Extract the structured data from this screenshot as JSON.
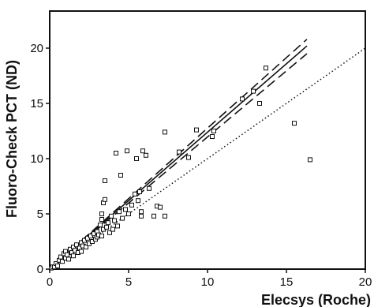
{
  "chart_data": {
    "type": "scatter",
    "title": "",
    "xlabel": "Elecsys (Roche)",
    "ylabel": "Fluoro-Check PCT (ND)",
    "xlim": [
      0,
      20
    ],
    "ylim": [
      0,
      20
    ],
    "x_ticks": [
      "0",
      "5",
      "10",
      "15",
      "20"
    ],
    "y_ticks": [
      "0",
      "5",
      "10",
      "15",
      "20"
    ],
    "grid": false,
    "legend": "none",
    "colors": {
      "axis": "#111111",
      "points": "#111111",
      "lines": "#111111"
    },
    "points": [
      {
        "x": 0.1,
        "y": 0.1
      },
      {
        "x": 0.2,
        "y": 0.2
      },
      {
        "x": 0.3,
        "y": 0.2
      },
      {
        "x": 0.4,
        "y": 0.5
      },
      {
        "x": 0.5,
        "y": 0.3
      },
      {
        "x": 0.6,
        "y": 0.8
      },
      {
        "x": 0.7,
        "y": 1.1
      },
      {
        "x": 0.8,
        "y": 0.7
      },
      {
        "x": 0.9,
        "y": 1.4
      },
      {
        "x": 1.0,
        "y": 1.0
      },
      {
        "x": 1.0,
        "y": 1.6
      },
      {
        "x": 1.1,
        "y": 1.3
      },
      {
        "x": 1.2,
        "y": 0.9
      },
      {
        "x": 1.3,
        "y": 1.8
      },
      {
        "x": 1.4,
        "y": 1.5
      },
      {
        "x": 1.5,
        "y": 1.2
      },
      {
        "x": 1.5,
        "y": 2.0
      },
      {
        "x": 1.6,
        "y": 1.7
      },
      {
        "x": 1.7,
        "y": 2.2
      },
      {
        "x": 1.8,
        "y": 1.5
      },
      {
        "x": 1.9,
        "y": 1.9
      },
      {
        "x": 2.0,
        "y": 2.4
      },
      {
        "x": 2.0,
        "y": 1.6
      },
      {
        "x": 2.1,
        "y": 2.1
      },
      {
        "x": 2.2,
        "y": 2.6
      },
      {
        "x": 2.3,
        "y": 2.0
      },
      {
        "x": 2.4,
        "y": 2.8
      },
      {
        "x": 2.5,
        "y": 2.3
      },
      {
        "x": 2.6,
        "y": 3.0
      },
      {
        "x": 2.7,
        "y": 2.5
      },
      {
        "x": 2.8,
        "y": 3.2
      },
      {
        "x": 2.9,
        "y": 2.7
      },
      {
        "x": 3.0,
        "y": 3.4
      },
      {
        "x": 3.0,
        "y": 2.9
      },
      {
        "x": 3.1,
        "y": 3.1
      },
      {
        "x": 3.2,
        "y": 4.0
      },
      {
        "x": 3.3,
        "y": 3.0
      },
      {
        "x": 3.3,
        "y": 4.5
      },
      {
        "x": 3.3,
        "y": 5.0
      },
      {
        "x": 3.4,
        "y": 3.6
      },
      {
        "x": 3.4,
        "y": 6.0
      },
      {
        "x": 3.5,
        "y": 6.3
      },
      {
        "x": 3.5,
        "y": 8.0
      },
      {
        "x": 3.6,
        "y": 3.8
      },
      {
        "x": 3.7,
        "y": 4.2
      },
      {
        "x": 3.8,
        "y": 3.3
      },
      {
        "x": 3.9,
        "y": 4.8
      },
      {
        "x": 4.0,
        "y": 3.6
      },
      {
        "x": 4.1,
        "y": 4.4
      },
      {
        "x": 4.2,
        "y": 10.5
      },
      {
        "x": 4.3,
        "y": 3.9
      },
      {
        "x": 4.4,
        "y": 5.2
      },
      {
        "x": 4.5,
        "y": 8.5
      },
      {
        "x": 4.6,
        "y": 4.6
      },
      {
        "x": 4.8,
        "y": 5.4
      },
      {
        "x": 4.9,
        "y": 10.7
      },
      {
        "x": 5.0,
        "y": 5.0
      },
      {
        "x": 5.2,
        "y": 5.8
      },
      {
        "x": 5.4,
        "y": 6.8
      },
      {
        "x": 5.5,
        "y": 10.0
      },
      {
        "x": 5.6,
        "y": 6.2
      },
      {
        "x": 5.7,
        "y": 7.0
      },
      {
        "x": 5.8,
        "y": 5.2
      },
      {
        "x": 5.8,
        "y": 4.8
      },
      {
        "x": 5.9,
        "y": 10.7
      },
      {
        "x": 6.1,
        "y": 10.3
      },
      {
        "x": 6.3,
        "y": 7.3
      },
      {
        "x": 6.6,
        "y": 4.8
      },
      {
        "x": 6.8,
        "y": 5.7
      },
      {
        "x": 7.0,
        "y": 5.6
      },
      {
        "x": 7.3,
        "y": 12.4
      },
      {
        "x": 7.3,
        "y": 4.8
      },
      {
        "x": 8.2,
        "y": 10.6
      },
      {
        "x": 8.8,
        "y": 10.1
      },
      {
        "x": 9.3,
        "y": 12.6
      },
      {
        "x": 10.3,
        "y": 12.0
      },
      {
        "x": 10.4,
        "y": 12.5
      },
      {
        "x": 12.2,
        "y": 15.4
      },
      {
        "x": 12.9,
        "y": 16.1
      },
      {
        "x": 13.3,
        "y": 15.0
      },
      {
        "x": 13.7,
        "y": 18.2
      },
      {
        "x": 15.5,
        "y": 13.2
      },
      {
        "x": 16.5,
        "y": 9.9
      }
    ],
    "lines": [
      {
        "style": "solid",
        "x": [
          0,
          16.3
        ],
        "y": [
          0,
          20.2
        ]
      },
      {
        "style": "dashed",
        "x": [
          0,
          16.3
        ],
        "y": [
          0,
          20.8
        ]
      },
      {
        "style": "dashed",
        "x": [
          0,
          16.3
        ],
        "y": [
          0,
          19.5
        ]
      },
      {
        "style": "dotted",
        "x": [
          0,
          20
        ],
        "y": [
          0,
          20
        ]
      }
    ]
  }
}
